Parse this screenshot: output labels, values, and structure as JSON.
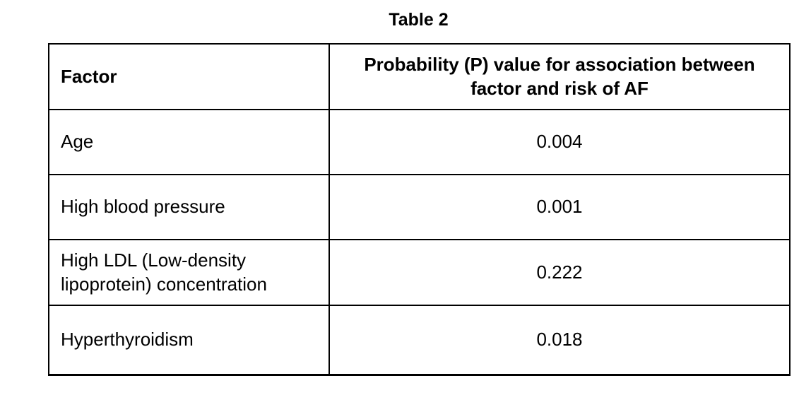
{
  "title": "Table 2",
  "table": {
    "columns": [
      {
        "label": "Factor"
      },
      {
        "label": "Probability (P) value for association between factor and risk of AF"
      }
    ],
    "rows": [
      {
        "factor": "Age",
        "p_value": "0.004"
      },
      {
        "factor": "High blood pressure",
        "p_value": "0.001"
      },
      {
        "factor": "High LDL (Low-density lipoprotein) concentration",
        "p_value": "0.222"
      },
      {
        "factor": "Hyperthyroidism",
        "p_value": "0.018"
      }
    ]
  },
  "colors": {
    "border": "#000000",
    "text": "#000000",
    "background": "#ffffff"
  }
}
